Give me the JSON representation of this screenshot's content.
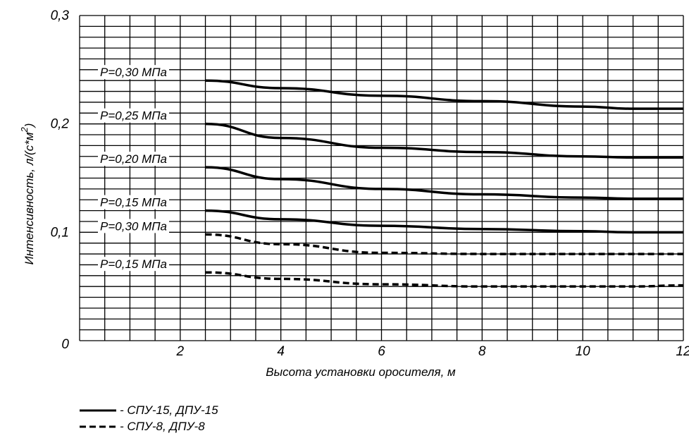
{
  "chart_data": {
    "type": "line",
    "title": "",
    "xlabel": "Высота установки оросителя, м",
    "ylabel_main": "Интенсивность, л/(с",
    "ylabel_mid": "*",
    "ylabel_unit": "м",
    "ylabel_sup": "2",
    "ylabel_close": ")",
    "xlim": [
      0,
      12
    ],
    "ylim": [
      0,
      0.3
    ],
    "x_ticks": [
      {
        "value": 2,
        "label": "2"
      },
      {
        "value": 4,
        "label": "4"
      },
      {
        "value": 6,
        "label": "6"
      },
      {
        "value": 8,
        "label": "8"
      },
      {
        "value": 10,
        "label": "10"
      },
      {
        "value": 12,
        "label": "12"
      }
    ],
    "y_ticks": [
      {
        "value": 0,
        "label": "0"
      },
      {
        "value": 0.1,
        "label": "0,1"
      },
      {
        "value": 0.2,
        "label": "0,2"
      },
      {
        "value": 0.3,
        "label": "0,3"
      }
    ],
    "grid": true,
    "series": [
      {
        "name": "P=0,30 МПа",
        "style": "solid",
        "x": [
          2.5,
          4,
          6,
          8,
          10,
          11,
          12
        ],
        "y": [
          0.24,
          0.233,
          0.226,
          0.221,
          0.216,
          0.214,
          0.214
        ]
      },
      {
        "name": "P=0,25 МПа",
        "style": "solid",
        "x": [
          2.5,
          4,
          6,
          8,
          10,
          11,
          12
        ],
        "y": [
          0.2,
          0.187,
          0.178,
          0.174,
          0.17,
          0.169,
          0.169
        ]
      },
      {
        "name": "P=0,20 МПа",
        "style": "solid",
        "x": [
          2.5,
          4,
          6,
          8,
          10,
          11,
          12
        ],
        "y": [
          0.16,
          0.149,
          0.14,
          0.135,
          0.132,
          0.131,
          0.131
        ]
      },
      {
        "name": "P=0,15 МПа",
        "style": "solid",
        "x": [
          2.5,
          4,
          6,
          8,
          10,
          11,
          12
        ],
        "y": [
          0.12,
          0.112,
          0.106,
          0.103,
          0.101,
          0.1,
          0.1
        ]
      },
      {
        "name": "P=0,30 МПа",
        "style": "dashed",
        "x": [
          2.5,
          4,
          6,
          8,
          10,
          11,
          12
        ],
        "y": [
          0.098,
          0.089,
          0.081,
          0.08,
          0.08,
          0.08,
          0.08
        ]
      },
      {
        "name": "P=0,15 МПа",
        "style": "dashed",
        "x": [
          2.5,
          4,
          6,
          8,
          10,
          11,
          12
        ],
        "y": [
          0.063,
          0.057,
          0.052,
          0.05,
          0.05,
          0.05,
          0.051
        ]
      }
    ],
    "legend": [
      {
        "style": "solid",
        "label": "- СПУ-15, ДПУ-15"
      },
      {
        "style": "dashed",
        "label": "- СПУ-8, ДПУ-8"
      }
    ],
    "legend_position": "bottom-left"
  }
}
